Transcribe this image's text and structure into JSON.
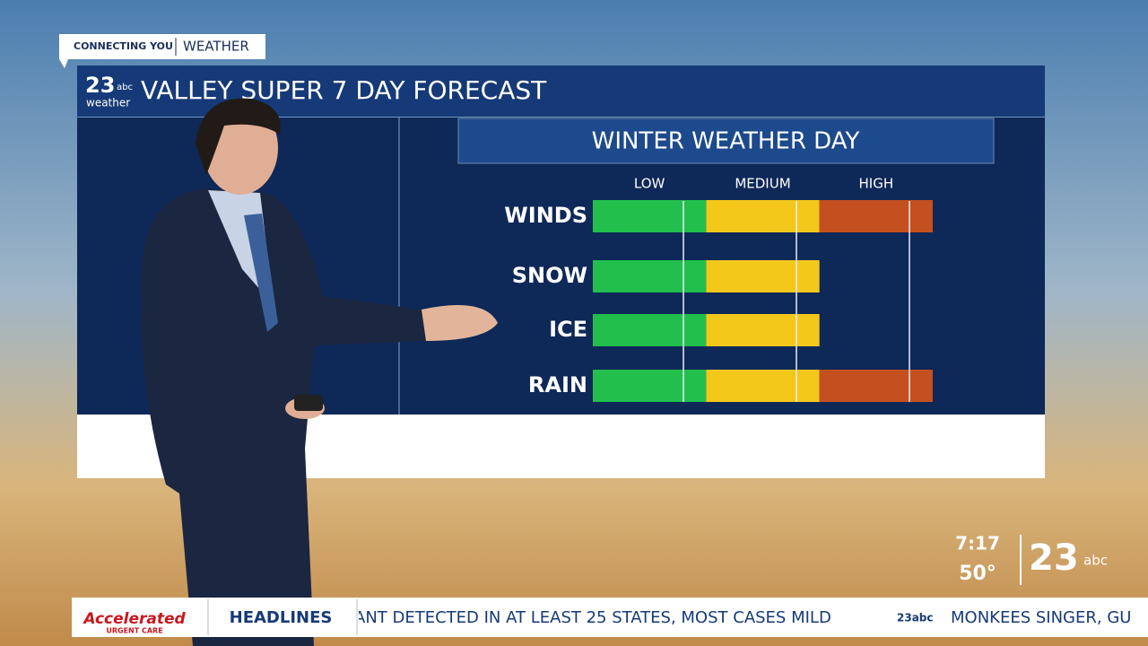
{
  "tag": {
    "left": "CONNECTING YOU",
    "right": "WEATHER"
  },
  "header": {
    "logo": "23",
    "logo_sub": "abc",
    "logo_caption": "weather",
    "title": "VALLEY SUPER 7 DAY FORECAST"
  },
  "chart_data": {
    "type": "bar",
    "orientation": "horizontal",
    "title": "WINTER WEATHER DAY",
    "categories": [
      "WINDS",
      "SNOW",
      "ICE",
      "RAIN"
    ],
    "values": [
      3,
      2,
      2,
      3
    ],
    "colors": [
      "#22bf4c",
      "#f3c81b",
      "#c4501f"
    ],
    "xlim": [
      0,
      3
    ],
    "xticks": [
      {
        "value": 0.5,
        "label": "LOW"
      },
      {
        "value": 1.5,
        "label": "MEDIUM"
      },
      {
        "value": 2.5,
        "label": "HIGH"
      }
    ]
  },
  "status": {
    "time": "7:17",
    "temperature": "50°",
    "logo": "23",
    "logo_sub": "abc"
  },
  "ticker": {
    "sponsor": "Accelerated",
    "sponsor_sub": "URGENT CARE",
    "label": "HEADLINES",
    "items": [
      "ANT DETECTED IN AT LEAST 25 STATES, MOST CASES MILD",
      "MONKEES SINGER, GU"
    ],
    "separator": "23abc"
  }
}
